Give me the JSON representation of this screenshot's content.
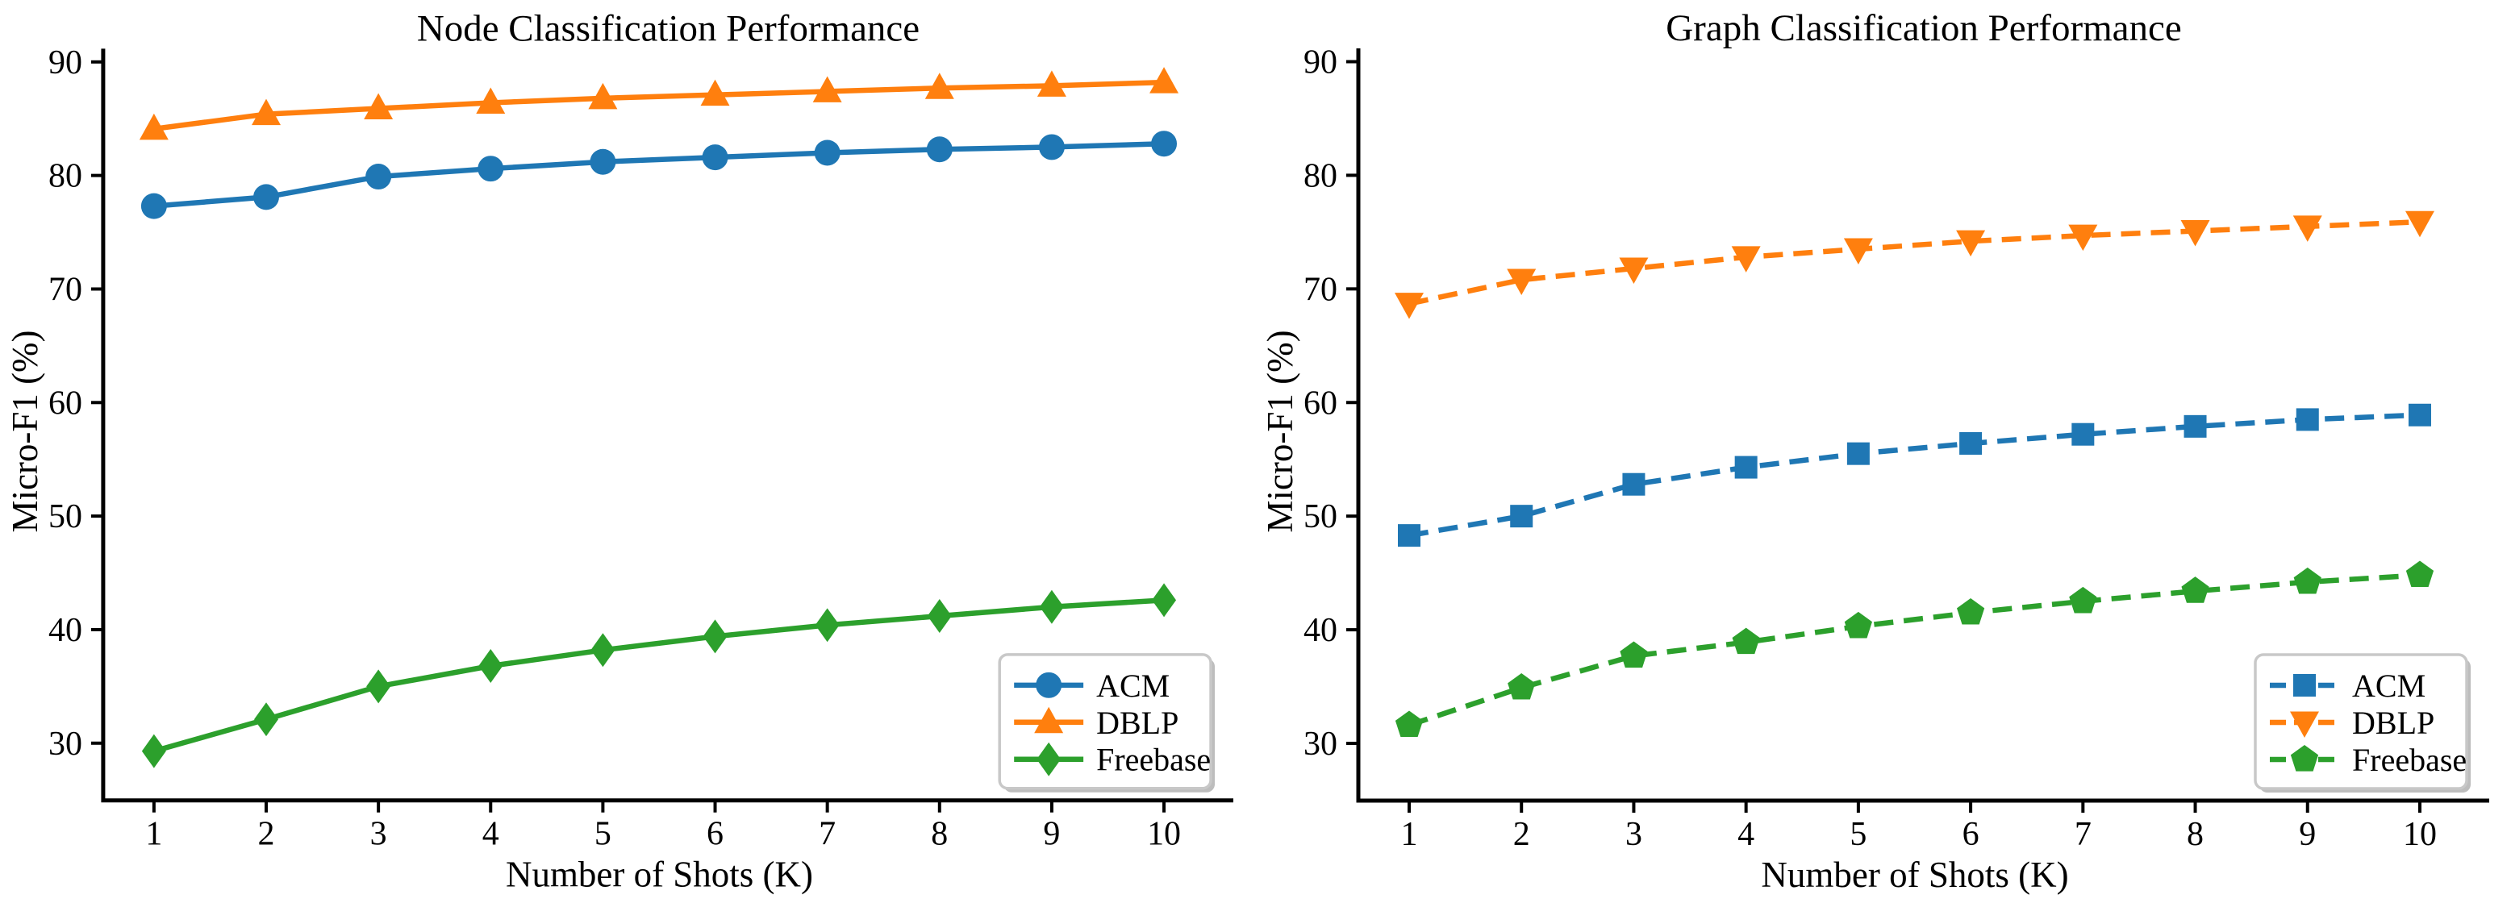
{
  "page": {
    "background": "#ffffff",
    "axis_color": "#000000",
    "text_color": "#000000",
    "legend_bg": "#ffffff",
    "legend_border": "#c8c8c8",
    "legend_shadow": "#bdbdbd"
  },
  "chart_data": [
    {
      "type": "line",
      "title": "Node Classification Performance",
      "xlabel": "Number of Shots (K)",
      "ylabel": "Micro-F1 (%)",
      "x": [
        1,
        2,
        3,
        4,
        5,
        6,
        7,
        8,
        9,
        10
      ],
      "xticks": [
        "1",
        "2",
        "3",
        "4",
        "5",
        "6",
        "7",
        "8",
        "9",
        "10"
      ],
      "yticks": [
        "30",
        "40",
        "50",
        "60",
        "70",
        "80",
        "90"
      ],
      "ylim": [
        25,
        91.2
      ],
      "grid": false,
      "legend_position": "lower right",
      "line_style": "solid",
      "series": [
        {
          "name": "ACM",
          "color": "#1f77b4",
          "marker": "circle",
          "values": [
            77.3,
            78.1,
            79.9,
            80.6,
            81.2,
            81.6,
            82.0,
            82.3,
            82.5,
            82.8
          ]
        },
        {
          "name": "DBLP",
          "color": "#ff7f0e",
          "marker": "triangle-up",
          "values": [
            84.1,
            85.4,
            85.9,
            86.4,
            86.8,
            87.1,
            87.4,
            87.7,
            87.9,
            88.2
          ]
        },
        {
          "name": "Freebase",
          "color": "#2ca02c",
          "marker": "diamond",
          "values": [
            29.3,
            32.1,
            35.0,
            36.8,
            38.2,
            39.4,
            40.4,
            41.2,
            42.0,
            42.6
          ]
        }
      ]
    },
    {
      "type": "line",
      "title": "Graph Classification Performance",
      "xlabel": "Number of Shots (K)",
      "ylabel": "Micro-F1 (%)",
      "x": [
        1,
        2,
        3,
        4,
        5,
        6,
        7,
        8,
        9,
        10
      ],
      "xticks": [
        "1",
        "2",
        "3",
        "4",
        "5",
        "6",
        "7",
        "8",
        "9",
        "10"
      ],
      "yticks": [
        "30",
        "40",
        "50",
        "60",
        "70",
        "80",
        "90"
      ],
      "ylim": [
        25,
        91.2
      ],
      "grid": false,
      "legend_position": "lower right",
      "line_style": "dashed",
      "series": [
        {
          "name": "ACM",
          "color": "#1f77b4",
          "marker": "square",
          "values": [
            48.3,
            50.0,
            52.8,
            54.3,
            55.5,
            56.4,
            57.2,
            57.9,
            58.5,
            58.9
          ]
        },
        {
          "name": "DBLP",
          "color": "#ff7f0e",
          "marker": "triangle-down",
          "values": [
            68.7,
            70.8,
            71.8,
            72.8,
            73.5,
            74.2,
            74.7,
            75.1,
            75.5,
            75.9
          ]
        },
        {
          "name": "Freebase",
          "color": "#2ca02c",
          "marker": "pentagon",
          "values": [
            31.6,
            34.9,
            37.7,
            38.9,
            40.3,
            41.5,
            42.5,
            43.4,
            44.2,
            44.8
          ]
        }
      ]
    }
  ]
}
